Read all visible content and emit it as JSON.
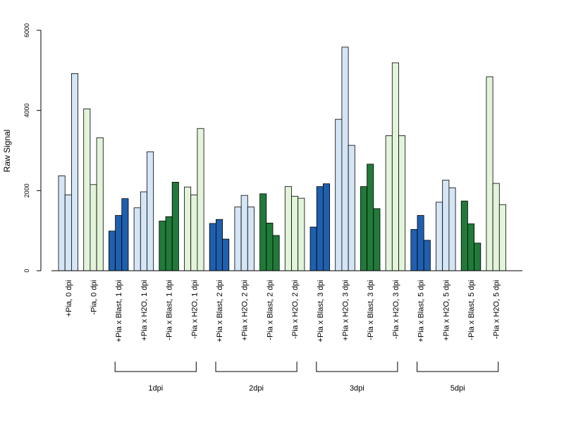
{
  "chart_data": {
    "type": "bar",
    "ylabel": "Raw Signal",
    "ylim": [
      0,
      6000
    ],
    "yticks": [
      "0",
      "2000",
      "4000",
      "6000"
    ],
    "colors": {
      "pia_mock": "#d4e5f5",
      "nopia_mock": "#e2f4d9",
      "pia_blast": "#1f5fae",
      "nopia_blast": "#217a3a"
    },
    "groups": [
      {
        "label": "+Pia, 0 dpi",
        "color": "pia_mock",
        "values": [
          2370,
          1890,
          4920
        ]
      },
      {
        "label": "-Pia, 0 dpi",
        "color": "nopia_mock",
        "values": [
          4040,
          2150,
          3320
        ]
      },
      {
        "label": "+Pia x Blast, 1 dpi",
        "color": "pia_blast",
        "values": [
          990,
          1380,
          1800
        ]
      },
      {
        "label": "+Pia x H2O, 1 dpi",
        "color": "pia_mock",
        "values": [
          1570,
          1970,
          2970
        ]
      },
      {
        "label": "-Pia x Blast, 1 dpi",
        "color": "nopia_blast",
        "values": [
          1240,
          1350,
          2210
        ]
      },
      {
        "label": "-Pia x H2O, 1 dpi",
        "color": "nopia_mock",
        "values": [
          2090,
          1890,
          3550
        ]
      },
      {
        "label": "+Pia x Blast, 2 dpi",
        "color": "pia_blast",
        "values": [
          1180,
          1280,
          790
        ]
      },
      {
        "label": "+Pia x H2O, 2 dpi",
        "color": "pia_mock",
        "values": [
          1590,
          1880,
          1590
        ]
      },
      {
        "label": "-Pia x Blast, 2 dpi",
        "color": "nopia_blast",
        "values": [
          1920,
          1190,
          880
        ]
      },
      {
        "label": "-Pia x H2O, 2 dpi",
        "color": "nopia_mock",
        "values": [
          2100,
          1860,
          1810
        ]
      },
      {
        "label": "+Pia x Blast, 3 dpi",
        "color": "pia_blast",
        "values": [
          1090,
          2100,
          2170
        ]
      },
      {
        "label": "+Pia x H2O, 3 dpi",
        "color": "pia_mock",
        "values": [
          3780,
          5580,
          3130
        ]
      },
      {
        "label": "-Pia x Blast, 3 dpi",
        "color": "nopia_blast",
        "values": [
          2100,
          2660,
          1550
        ]
      },
      {
        "label": "-Pia x H2O, 3 dpi",
        "color": "nopia_mock",
        "values": [
          3370,
          5190,
          3370
        ]
      },
      {
        "label": "+Pia x Blast, 5 dpi",
        "color": "pia_blast",
        "values": [
          1030,
          1380,
          760
        ]
      },
      {
        "label": "+Pia x H2O, 5 dpi",
        "color": "pia_mock",
        "values": [
          1710,
          2260,
          2070
        ]
      },
      {
        "label": "-Pia x Blast, 5 dpi",
        "color": "nopia_blast",
        "values": [
          1740,
          1170,
          690
        ]
      },
      {
        "label": "-Pia x H2O, 5 dpi",
        "color": "nopia_mock",
        "values": [
          4840,
          2180,
          1650
        ]
      }
    ],
    "brackets": [
      {
        "label": "1dpi",
        "from_group": 2,
        "to_group": 5
      },
      {
        "label": "2dpi",
        "from_group": 6,
        "to_group": 9
      },
      {
        "label": "3dpi",
        "from_group": 10,
        "to_group": 13
      },
      {
        "label": "5dpi",
        "from_group": 14,
        "to_group": 17
      }
    ],
    "grid": false,
    "legend": "none"
  }
}
